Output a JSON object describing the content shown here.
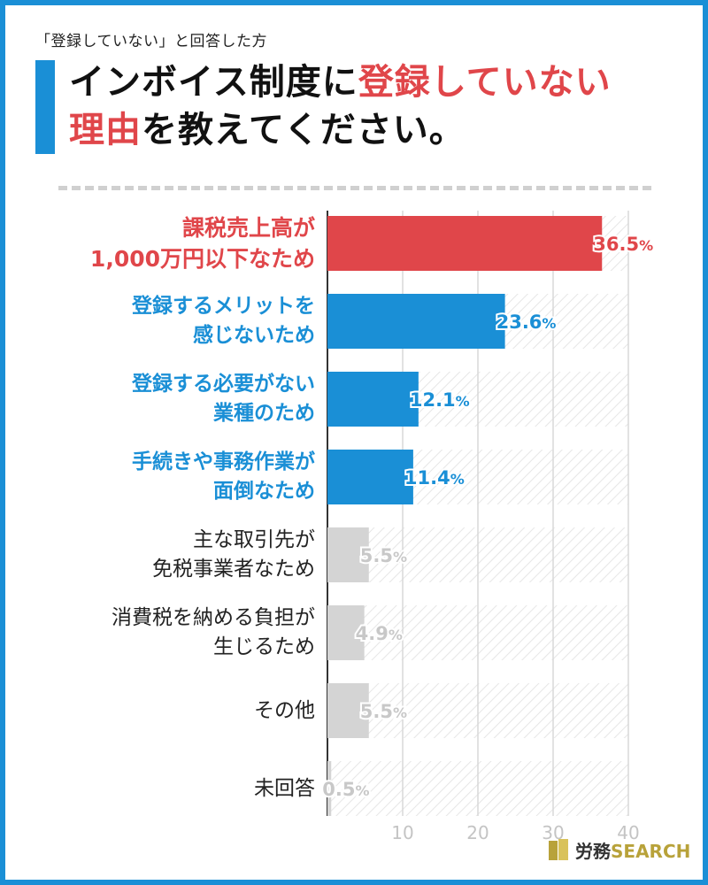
{
  "header": {
    "subtitle": "「登録していない」と回答した方",
    "title_part1": "インボイス制度に",
    "title_part2": "登録していない",
    "title_part3": "理由",
    "title_part4": "を教えてください。"
  },
  "chart_data": {
    "type": "bar",
    "orientation": "horizontal",
    "categories": [
      [
        "課税売上高が",
        "1,000万円以下なため"
      ],
      [
        "登録するメリットを",
        "感じないため"
      ],
      [
        "登録する必要がない",
        "業種のため"
      ],
      [
        "手続きや事務作業が",
        "面倒なため"
      ],
      [
        "主な取引先が",
        "免税事業者なため"
      ],
      [
        "消費税を納める負担が",
        "生じるため"
      ],
      [
        "その他"
      ],
      [
        "未回答"
      ]
    ],
    "values": [
      36.5,
      23.6,
      12.1,
      11.4,
      5.5,
      4.9,
      5.5,
      0.5
    ],
    "value_labels": [
      "36.5%",
      "23.6%",
      "12.1%",
      "11.4%",
      "5.5%",
      "4.9%",
      "5.5%",
      "0.5%"
    ],
    "bar_colors": [
      "#e0464a",
      "#1a8fd6",
      "#1a8fd6",
      "#1a8fd6",
      "#d4d4d4",
      "#d4d4d4",
      "#d4d4d4",
      "#d4d4d4"
    ],
    "label_styles": [
      "red",
      "blue",
      "blue",
      "blue",
      "gray",
      "gray",
      "gray",
      "gray"
    ],
    "xlim": [
      0,
      40
    ],
    "xticks": [
      10,
      20,
      30,
      40
    ],
    "grid": true
  },
  "logo": {
    "part1": "労務",
    "part2": "SEARCH"
  },
  "colors": {
    "accent_blue": "#1a8fd6",
    "accent_red": "#e0464a",
    "neutral_bar": "#d4d4d4"
  }
}
